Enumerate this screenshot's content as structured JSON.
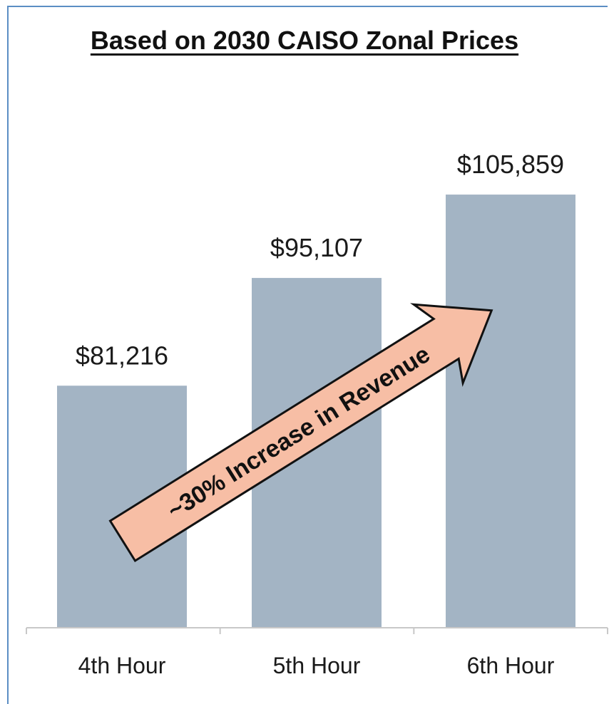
{
  "chart_data": {
    "type": "bar",
    "title": "Based on 2030 CAISO Zonal Prices",
    "categories": [
      "4th Hour",
      "5th Hour",
      "6th Hour"
    ],
    "values": [
      81216,
      95107,
      105859
    ],
    "value_labels": [
      "$81,216",
      "$95,107",
      "$105,859"
    ],
    "ylim": [
      50000,
      110000
    ],
    "grid": false,
    "legend": "none",
    "annotation": "~30% Increase in Revenue",
    "bar_color": "#a3b4c4",
    "arrow_color": "#f7bea5"
  }
}
